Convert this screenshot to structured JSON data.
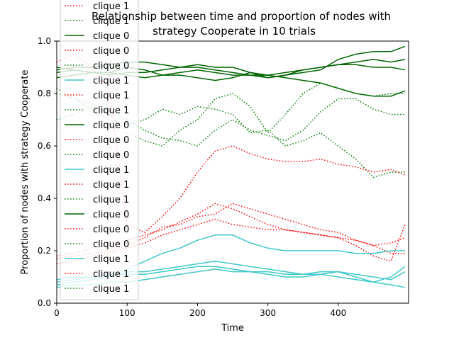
{
  "chart_data": {
    "type": "line",
    "title_line1": "Relationship between time and proportion of nodes with",
    "title_line2": "strategy Cooperate in 10 trials",
    "xlabel": "Time",
    "ylabel": "Proportion of nodes with strategy Cooperate",
    "xlim": [
      0,
      500
    ],
    "ylim": [
      0.0,
      1.0
    ],
    "xticks": [
      "0",
      "100",
      "200",
      "300",
      "400"
    ],
    "yticks": [
      "0.0",
      "0.2",
      "0.4",
      "0.6",
      "0.8",
      "1.0"
    ],
    "grid": false,
    "legend_position": "top-left",
    "colors": {
      "dark_green": "#006400",
      "green": "#008000",
      "red": "#ff0000",
      "turquoise": "#40c8c8"
    },
    "legend": [
      {
        "label": "clique 1",
        "color": "#ff0000",
        "style": "dotted"
      },
      {
        "label": "clique 1",
        "color": "#008000",
        "style": "dotted"
      },
      {
        "label": "clique 0",
        "color": "#006400",
        "style": "solid"
      },
      {
        "label": "clique 0",
        "color": "#ff0000",
        "style": "dotted"
      },
      {
        "label": "clique 0",
        "color": "#008000",
        "style": "dotted"
      },
      {
        "label": "clique 1",
        "color": "#40c8c8",
        "style": "solid"
      },
      {
        "label": "clique 1",
        "color": "#ff0000",
        "style": "dotted"
      },
      {
        "label": "clique 1",
        "color": "#008000",
        "style": "dotted"
      },
      {
        "label": "clique 0",
        "color": "#006400",
        "style": "solid"
      },
      {
        "label": "clique 0",
        "color": "#ff0000",
        "style": "dotted"
      },
      {
        "label": "clique 0",
        "color": "#008000",
        "style": "dotted"
      },
      {
        "label": "clique 1",
        "color": "#40c8c8",
        "style": "solid"
      },
      {
        "label": "clique 1",
        "color": "#ff0000",
        "style": "dotted"
      },
      {
        "label": "clique 1",
        "color": "#008000",
        "style": "dotted"
      },
      {
        "label": "clique 0",
        "color": "#006400",
        "style": "solid"
      },
      {
        "label": "clique 0",
        "color": "#ff0000",
        "style": "dotted"
      },
      {
        "label": "clique 0",
        "color": "#008000",
        "style": "dotted"
      },
      {
        "label": "clique 1",
        "color": "#40c8c8",
        "style": "solid"
      },
      {
        "label": "clique 1",
        "color": "#ff0000",
        "style": "dotted"
      },
      {
        "label": "clique 1",
        "color": "#008000",
        "style": "dotted"
      }
    ],
    "x": [
      0,
      25,
      50,
      75,
      100,
      125,
      150,
      175,
      200,
      225,
      250,
      275,
      300,
      325,
      350,
      375,
      400,
      425,
      450,
      475,
      495
    ],
    "series": [
      {
        "color": "#006400",
        "style": "solid",
        "values": [
          0.89,
          0.9,
          0.9,
          0.91,
          0.92,
          0.92,
          0.91,
          0.9,
          0.9,
          0.89,
          0.88,
          0.87,
          0.87,
          0.88,
          0.89,
          0.9,
          0.91,
          0.91,
          0.9,
          0.9,
          0.89
        ]
      },
      {
        "color": "#006400",
        "style": "solid",
        "values": [
          0.9,
          0.89,
          0.88,
          0.88,
          0.9,
          0.89,
          0.87,
          0.88,
          0.89,
          0.88,
          0.87,
          0.87,
          0.86,
          0.87,
          0.89,
          0.9,
          0.91,
          0.92,
          0.93,
          0.92,
          0.93
        ]
      },
      {
        "color": "#006400",
        "style": "solid",
        "values": [
          0.88,
          0.89,
          0.88,
          0.87,
          0.88,
          0.88,
          0.89,
          0.9,
          0.91,
          0.9,
          0.9,
          0.88,
          0.86,
          0.87,
          0.88,
          0.89,
          0.93,
          0.95,
          0.96,
          0.96,
          0.98
        ]
      },
      {
        "color": "#006400",
        "style": "solid",
        "values": [
          0.86,
          0.87,
          0.88,
          0.88,
          0.87,
          0.86,
          0.87,
          0.87,
          0.86,
          0.85,
          0.86,
          0.88,
          0.87,
          0.86,
          0.85,
          0.84,
          0.82,
          0.8,
          0.79,
          0.79,
          0.81
        ]
      },
      {
        "color": "#008000",
        "style": "dotted",
        "values": [
          0.82,
          0.78,
          0.74,
          0.7,
          0.68,
          0.7,
          0.74,
          0.72,
          0.75,
          0.74,
          0.72,
          0.65,
          0.66,
          0.6,
          0.62,
          0.65,
          0.6,
          0.55,
          0.48,
          0.5,
          0.5
        ]
      },
      {
        "color": "#008000",
        "style": "dotted",
        "values": [
          0.8,
          0.78,
          0.76,
          0.72,
          0.65,
          0.62,
          0.6,
          0.66,
          0.7,
          0.78,
          0.8,
          0.75,
          0.65,
          0.72,
          0.8,
          0.84,
          0.82,
          0.8,
          0.79,
          0.8,
          0.8
        ]
      },
      {
        "color": "#008000",
        "style": "dotted",
        "values": [
          0.7,
          0.72,
          0.75,
          0.73,
          0.7,
          0.66,
          0.63,
          0.62,
          0.6,
          0.66,
          0.7,
          0.66,
          0.64,
          0.62,
          0.66,
          0.73,
          0.78,
          0.78,
          0.74,
          0.72,
          0.72
        ]
      },
      {
        "color": "#ff0000",
        "style": "dotted",
        "values": [
          0.92,
          0.95,
          0.9,
          0.8,
          0.3,
          0.27,
          0.33,
          0.4,
          0.5,
          0.58,
          0.6,
          0.57,
          0.55,
          0.54,
          0.54,
          0.55,
          0.53,
          0.52,
          0.5,
          0.51,
          0.49
        ]
      },
      {
        "color": "#ff0000",
        "style": "dotted",
        "values": [
          0.18,
          0.19,
          0.21,
          0.22,
          0.24,
          0.26,
          0.28,
          0.31,
          0.34,
          0.38,
          0.36,
          0.33,
          0.3,
          0.28,
          0.27,
          0.26,
          0.25,
          0.24,
          0.22,
          0.23,
          0.25
        ]
      },
      {
        "color": "#ff0000",
        "style": "dotted",
        "values": [
          0.17,
          0.18,
          0.19,
          0.2,
          0.22,
          0.25,
          0.29,
          0.3,
          0.33,
          0.34,
          0.38,
          0.36,
          0.34,
          0.32,
          0.3,
          0.28,
          0.27,
          0.24,
          0.22,
          0.19,
          0.19
        ]
      },
      {
        "color": "#ff0000",
        "style": "dotted",
        "values": [
          0.15,
          0.16,
          0.18,
          0.19,
          0.21,
          0.23,
          0.26,
          0.28,
          0.3,
          0.32,
          0.3,
          0.29,
          0.28,
          0.28,
          0.27,
          0.26,
          0.25,
          0.22,
          0.18,
          0.16,
          0.3
        ]
      },
      {
        "color": "#40c8c8",
        "style": "solid",
        "values": [
          0.08,
          0.09,
          0.1,
          0.11,
          0.13,
          0.16,
          0.19,
          0.21,
          0.24,
          0.26,
          0.26,
          0.23,
          0.21,
          0.2,
          0.2,
          0.2,
          0.2,
          0.19,
          0.19,
          0.2,
          0.2
        ]
      },
      {
        "color": "#40c8c8",
        "style": "solid",
        "values": [
          0.07,
          0.08,
          0.09,
          0.1,
          0.12,
          0.12,
          0.13,
          0.14,
          0.15,
          0.16,
          0.15,
          0.14,
          0.13,
          0.12,
          0.11,
          0.12,
          0.12,
          0.1,
          0.08,
          0.07,
          0.06
        ]
      },
      {
        "color": "#40c8c8",
        "style": "solid",
        "values": [
          0.09,
          0.1,
          0.1,
          0.11,
          0.11,
          0.11,
          0.12,
          0.13,
          0.14,
          0.14,
          0.13,
          0.12,
          0.12,
          0.11,
          0.11,
          0.11,
          0.12,
          0.11,
          0.1,
          0.09,
          0.12
        ]
      },
      {
        "color": "#40c8c8",
        "style": "solid",
        "values": [
          0.06,
          0.07,
          0.07,
          0.08,
          0.08,
          0.09,
          0.1,
          0.11,
          0.12,
          0.13,
          0.12,
          0.12,
          0.11,
          0.1,
          0.1,
          0.11,
          0.1,
          0.09,
          0.08,
          0.1,
          0.14
        ]
      }
    ]
  }
}
